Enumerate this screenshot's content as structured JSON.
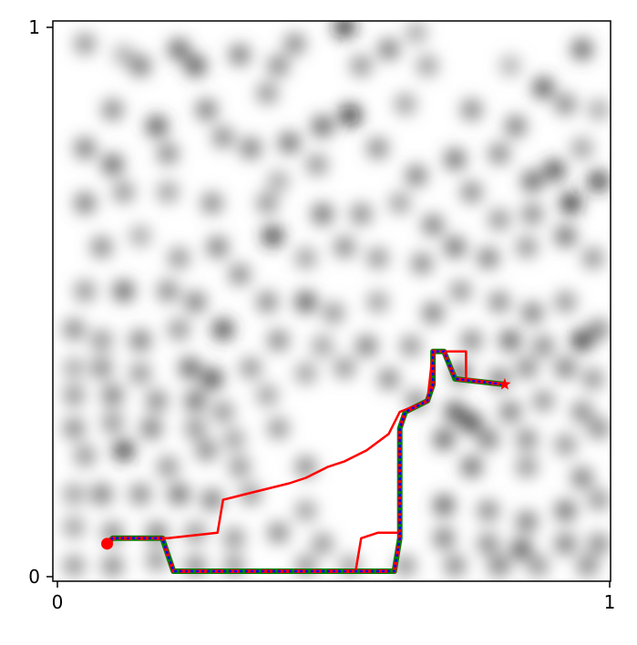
{
  "chart_data": {
    "type": "line",
    "title": "",
    "xlabel": "",
    "ylabel": "",
    "xlim": [
      0,
      1
    ],
    "ylim": [
      0,
      1
    ],
    "xticks": [
      "0",
      "1"
    ],
    "yticks": [
      "0",
      "1"
    ],
    "grid": false,
    "legend": "none",
    "background": {
      "type": "heatmap",
      "colormap": "gray_r",
      "blobs": [
        [
          0.05,
          0.97,
          0.5
        ],
        [
          0.12,
          0.95,
          0.35
        ],
        [
          0.22,
          0.96,
          0.7
        ],
        [
          0.33,
          0.95,
          0.6
        ],
        [
          0.43,
          0.97,
          0.55
        ],
        [
          0.52,
          1.0,
          0.9
        ],
        [
          0.6,
          0.96,
          0.6
        ],
        [
          0.65,
          0.99,
          0.4
        ],
        [
          0.15,
          0.93,
          0.6
        ],
        [
          0.25,
          0.93,
          0.75
        ],
        [
          0.4,
          0.93,
          0.55
        ],
        [
          0.55,
          0.93,
          0.5
        ],
        [
          0.67,
          0.93,
          0.45
        ],
        [
          0.82,
          0.93,
          0.35
        ],
        [
          0.95,
          0.96,
          0.7
        ],
        [
          0.1,
          0.85,
          0.55
        ],
        [
          0.18,
          0.82,
          0.75
        ],
        [
          0.27,
          0.85,
          0.6
        ],
        [
          0.38,
          0.88,
          0.5
        ],
        [
          0.48,
          0.82,
          0.7
        ],
        [
          0.53,
          0.84,
          0.95
        ],
        [
          0.63,
          0.86,
          0.45
        ],
        [
          0.75,
          0.85,
          0.55
        ],
        [
          0.83,
          0.82,
          0.6
        ],
        [
          0.88,
          0.89,
          0.75
        ],
        [
          0.92,
          0.86,
          0.55
        ],
        [
          0.95,
          0.78,
          0.45
        ],
        [
          0.98,
          0.85,
          0.4
        ],
        [
          0.05,
          0.78,
          0.6
        ],
        [
          0.1,
          0.75,
          0.7
        ],
        [
          0.2,
          0.77,
          0.55
        ],
        [
          0.3,
          0.8,
          0.55
        ],
        [
          0.35,
          0.78,
          0.6
        ],
        [
          0.42,
          0.79,
          0.65
        ],
        [
          0.47,
          0.75,
          0.5
        ],
        [
          0.58,
          0.78,
          0.55
        ],
        [
          0.65,
          0.73,
          0.6
        ],
        [
          0.72,
          0.76,
          0.65
        ],
        [
          0.8,
          0.77,
          0.55
        ],
        [
          0.86,
          0.72,
          0.7
        ],
        [
          0.9,
          0.74,
          0.8
        ],
        [
          0.98,
          0.72,
          0.85
        ],
        [
          0.05,
          0.68,
          0.6
        ],
        [
          0.12,
          0.7,
          0.5
        ],
        [
          0.2,
          0.7,
          0.45
        ],
        [
          0.28,
          0.68,
          0.55
        ],
        [
          0.38,
          0.68,
          0.5
        ],
        [
          0.4,
          0.72,
          0.4
        ],
        [
          0.48,
          0.66,
          0.65
        ],
        [
          0.55,
          0.66,
          0.55
        ],
        [
          0.62,
          0.68,
          0.45
        ],
        [
          0.68,
          0.64,
          0.6
        ],
        [
          0.75,
          0.7,
          0.55
        ],
        [
          0.8,
          0.65,
          0.5
        ],
        [
          0.86,
          0.66,
          0.55
        ],
        [
          0.93,
          0.68,
          0.9
        ],
        [
          0.08,
          0.6,
          0.55
        ],
        [
          0.15,
          0.62,
          0.4
        ],
        [
          0.22,
          0.58,
          0.5
        ],
        [
          0.29,
          0.6,
          0.6
        ],
        [
          0.39,
          0.62,
          0.85
        ],
        [
          0.45,
          0.58,
          0.45
        ],
        [
          0.52,
          0.6,
          0.55
        ],
        [
          0.58,
          0.58,
          0.5
        ],
        [
          0.66,
          0.57,
          0.55
        ],
        [
          0.72,
          0.6,
          0.65
        ],
        [
          0.78,
          0.58,
          0.6
        ],
        [
          0.85,
          0.6,
          0.5
        ],
        [
          0.92,
          0.62,
          0.65
        ],
        [
          0.97,
          0.58,
          0.5
        ],
        [
          0.05,
          0.52,
          0.5
        ],
        [
          0.12,
          0.52,
          0.7
        ],
        [
          0.2,
          0.52,
          0.55
        ],
        [
          0.25,
          0.5,
          0.6
        ],
        [
          0.33,
          0.55,
          0.55
        ],
        [
          0.38,
          0.5,
          0.55
        ],
        [
          0.45,
          0.5,
          0.75
        ],
        [
          0.5,
          0.48,
          0.5
        ],
        [
          0.58,
          0.5,
          0.45
        ],
        [
          0.68,
          0.48,
          0.6
        ],
        [
          0.73,
          0.52,
          0.5
        ],
        [
          0.8,
          0.5,
          0.55
        ],
        [
          0.86,
          0.48,
          0.6
        ],
        [
          0.92,
          0.5,
          0.5
        ],
        [
          0.98,
          0.45,
          0.55
        ],
        [
          0.03,
          0.45,
          0.55
        ],
        [
          0.08,
          0.43,
          0.5
        ],
        [
          0.15,
          0.43,
          0.6
        ],
        [
          0.22,
          0.45,
          0.5
        ],
        [
          0.3,
          0.45,
          0.8
        ],
        [
          0.4,
          0.43,
          0.55
        ],
        [
          0.48,
          0.42,
          0.45
        ],
        [
          0.56,
          0.42,
          0.6
        ],
        [
          0.64,
          0.42,
          0.5
        ],
        [
          0.75,
          0.43,
          0.55
        ],
        [
          0.82,
          0.43,
          0.7
        ],
        [
          0.88,
          0.42,
          0.55
        ],
        [
          0.95,
          0.43,
          0.9
        ],
        [
          0.03,
          0.38,
          0.4
        ],
        [
          0.08,
          0.38,
          0.55
        ],
        [
          0.15,
          0.37,
          0.5
        ],
        [
          0.24,
          0.38,
          0.7
        ],
        [
          0.28,
          0.36,
          0.8
        ],
        [
          0.35,
          0.38,
          0.5
        ],
        [
          0.45,
          0.37,
          0.45
        ],
        [
          0.52,
          0.38,
          0.5
        ],
        [
          0.6,
          0.36,
          0.55
        ],
        [
          0.73,
          0.37,
          0.7
        ],
        [
          0.8,
          0.36,
          0.6
        ],
        [
          0.85,
          0.38,
          0.55
        ],
        [
          0.92,
          0.38,
          0.6
        ],
        [
          0.97,
          0.36,
          0.5
        ],
        [
          0.03,
          0.33,
          0.5
        ],
        [
          0.1,
          0.33,
          0.6
        ],
        [
          0.18,
          0.32,
          0.55
        ],
        [
          0.25,
          0.32,
          0.65
        ],
        [
          0.3,
          0.3,
          0.5
        ],
        [
          0.38,
          0.33,
          0.45
        ],
        [
          0.65,
          0.32,
          0.55
        ],
        [
          0.72,
          0.3,
          0.75
        ],
        [
          0.75,
          0.28,
          0.8
        ],
        [
          0.82,
          0.3,
          0.6
        ],
        [
          0.88,
          0.32,
          0.5
        ],
        [
          0.95,
          0.3,
          0.55
        ],
        [
          0.03,
          0.27,
          0.55
        ],
        [
          0.1,
          0.28,
          0.5
        ],
        [
          0.17,
          0.27,
          0.6
        ],
        [
          0.25,
          0.27,
          0.5
        ],
        [
          0.32,
          0.25,
          0.45
        ],
        [
          0.4,
          0.27,
          0.5
        ],
        [
          0.7,
          0.25,
          0.7
        ],
        [
          0.78,
          0.25,
          0.6
        ],
        [
          0.85,
          0.25,
          0.55
        ],
        [
          0.92,
          0.24,
          0.5
        ],
        [
          0.98,
          0.27,
          0.55
        ],
        [
          0.05,
          0.22,
          0.5
        ],
        [
          0.12,
          0.23,
          0.85
        ],
        [
          0.2,
          0.2,
          0.5
        ],
        [
          0.27,
          0.23,
          0.55
        ],
        [
          0.33,
          0.2,
          0.5
        ],
        [
          0.45,
          0.2,
          0.55
        ],
        [
          0.75,
          0.2,
          0.65
        ],
        [
          0.85,
          0.2,
          0.5
        ],
        [
          0.95,
          0.18,
          0.6
        ],
        [
          0.03,
          0.15,
          0.45
        ],
        [
          0.08,
          0.15,
          0.6
        ],
        [
          0.15,
          0.15,
          0.55
        ],
        [
          0.22,
          0.15,
          0.65
        ],
        [
          0.28,
          0.14,
          0.6
        ],
        [
          0.35,
          0.15,
          0.5
        ],
        [
          0.45,
          0.12,
          0.45
        ],
        [
          0.7,
          0.13,
          0.7
        ],
        [
          0.78,
          0.12,
          0.55
        ],
        [
          0.85,
          0.1,
          0.6
        ],
        [
          0.92,
          0.12,
          0.65
        ],
        [
          0.98,
          0.14,
          0.5
        ],
        [
          0.03,
          0.09,
          0.45
        ],
        [
          0.1,
          0.08,
          0.55
        ],
        [
          0.18,
          0.08,
          0.6
        ],
        [
          0.25,
          0.08,
          0.5
        ],
        [
          0.32,
          0.07,
          0.5
        ],
        [
          0.4,
          0.08,
          0.55
        ],
        [
          0.48,
          0.06,
          0.5
        ],
        [
          0.7,
          0.07,
          0.6
        ],
        [
          0.78,
          0.06,
          0.55
        ],
        [
          0.84,
          0.05,
          0.75
        ],
        [
          0.92,
          0.06,
          0.6
        ],
        [
          0.98,
          0.06,
          0.55
        ],
        [
          0.03,
          0.02,
          0.5
        ],
        [
          0.1,
          0.02,
          0.55
        ],
        [
          0.18,
          0.03,
          0.5
        ],
        [
          0.25,
          0.02,
          0.55
        ],
        [
          0.32,
          0.02,
          0.5
        ],
        [
          0.45,
          0.02,
          0.5
        ],
        [
          0.53,
          0.02,
          0.45
        ],
        [
          0.63,
          0.02,
          0.5
        ],
        [
          0.72,
          0.02,
          0.55
        ],
        [
          0.8,
          0.02,
          0.6
        ],
        [
          0.87,
          0.02,
          0.5
        ],
        [
          0.96,
          0.02,
          0.55
        ]
      ]
    },
    "series": [
      {
        "color": "#008000",
        "style": "solid",
        "points": [
          [
            0.09,
            0.06
          ],
          [
            0.1,
            0.07
          ],
          [
            0.19,
            0.07
          ],
          [
            0.21,
            0.01
          ],
          [
            0.24,
            0.01
          ],
          [
            0.29,
            0.01
          ],
          [
            0.31,
            0.01
          ],
          [
            0.42,
            0.01
          ],
          [
            0.61,
            0.01
          ],
          [
            0.62,
            0.07
          ],
          [
            0.62,
            0.27
          ],
          [
            0.63,
            0.3
          ],
          [
            0.67,
            0.32
          ],
          [
            0.68,
            0.35
          ],
          [
            0.68,
            0.41
          ],
          [
            0.7,
            0.41
          ],
          [
            0.72,
            0.36
          ],
          [
            0.81,
            0.35
          ]
        ]
      },
      {
        "color": "#ff0000",
        "style": "dashed",
        "points": [
          [
            0.09,
            0.06
          ],
          [
            0.1,
            0.07
          ],
          [
            0.19,
            0.07
          ],
          [
            0.21,
            0.01
          ],
          [
            0.24,
            0.01
          ],
          [
            0.29,
            0.01
          ],
          [
            0.31,
            0.01
          ],
          [
            0.42,
            0.01
          ],
          [
            0.61,
            0.01
          ],
          [
            0.62,
            0.07
          ],
          [
            0.62,
            0.27
          ],
          [
            0.63,
            0.3
          ],
          [
            0.67,
            0.32
          ],
          [
            0.68,
            0.35
          ],
          [
            0.68,
            0.41
          ],
          [
            0.7,
            0.41
          ],
          [
            0.72,
            0.36
          ],
          [
            0.81,
            0.35
          ]
        ]
      },
      {
        "color": "#ff0000",
        "style": "solid",
        "points": [
          [
            0.09,
            0.06
          ],
          [
            0.1,
            0.07
          ],
          [
            0.2,
            0.07
          ],
          [
            0.29,
            0.08
          ],
          [
            0.3,
            0.14
          ],
          [
            0.34,
            0.15
          ],
          [
            0.42,
            0.17
          ],
          [
            0.45,
            0.18
          ],
          [
            0.49,
            0.2
          ],
          [
            0.52,
            0.21
          ],
          [
            0.56,
            0.23
          ],
          [
            0.6,
            0.26
          ],
          [
            0.62,
            0.3
          ],
          [
            0.67,
            0.32
          ],
          [
            0.68,
            0.41
          ],
          [
            0.74,
            0.41
          ],
          [
            0.74,
            0.36
          ],
          [
            0.81,
            0.35
          ]
        ]
      },
      {
        "color": "#ff0000",
        "style": "solid",
        "points": [
          [
            0.54,
            0.01
          ],
          [
            0.55,
            0.07
          ],
          [
            0.58,
            0.08
          ],
          [
            0.62,
            0.08
          ]
        ]
      },
      {
        "color": "#0000ff",
        "style": "dotted",
        "points": [
          [
            0.09,
            0.06
          ],
          [
            0.1,
            0.07
          ],
          [
            0.19,
            0.07
          ],
          [
            0.21,
            0.01
          ],
          [
            0.24,
            0.01
          ],
          [
            0.29,
            0.01
          ],
          [
            0.31,
            0.01
          ],
          [
            0.42,
            0.01
          ],
          [
            0.61,
            0.01
          ],
          [
            0.62,
            0.07
          ],
          [
            0.62,
            0.27
          ],
          [
            0.63,
            0.3
          ],
          [
            0.67,
            0.32
          ],
          [
            0.68,
            0.35
          ],
          [
            0.68,
            0.41
          ],
          [
            0.7,
            0.41
          ],
          [
            0.72,
            0.36
          ],
          [
            0.81,
            0.35
          ]
        ]
      }
    ],
    "start": {
      "x": 0.09,
      "y": 0.06,
      "marker": "circle",
      "color": "#ff0000"
    },
    "goal": {
      "x": 0.81,
      "y": 0.35,
      "marker": "star",
      "color": "#ff0000"
    }
  }
}
